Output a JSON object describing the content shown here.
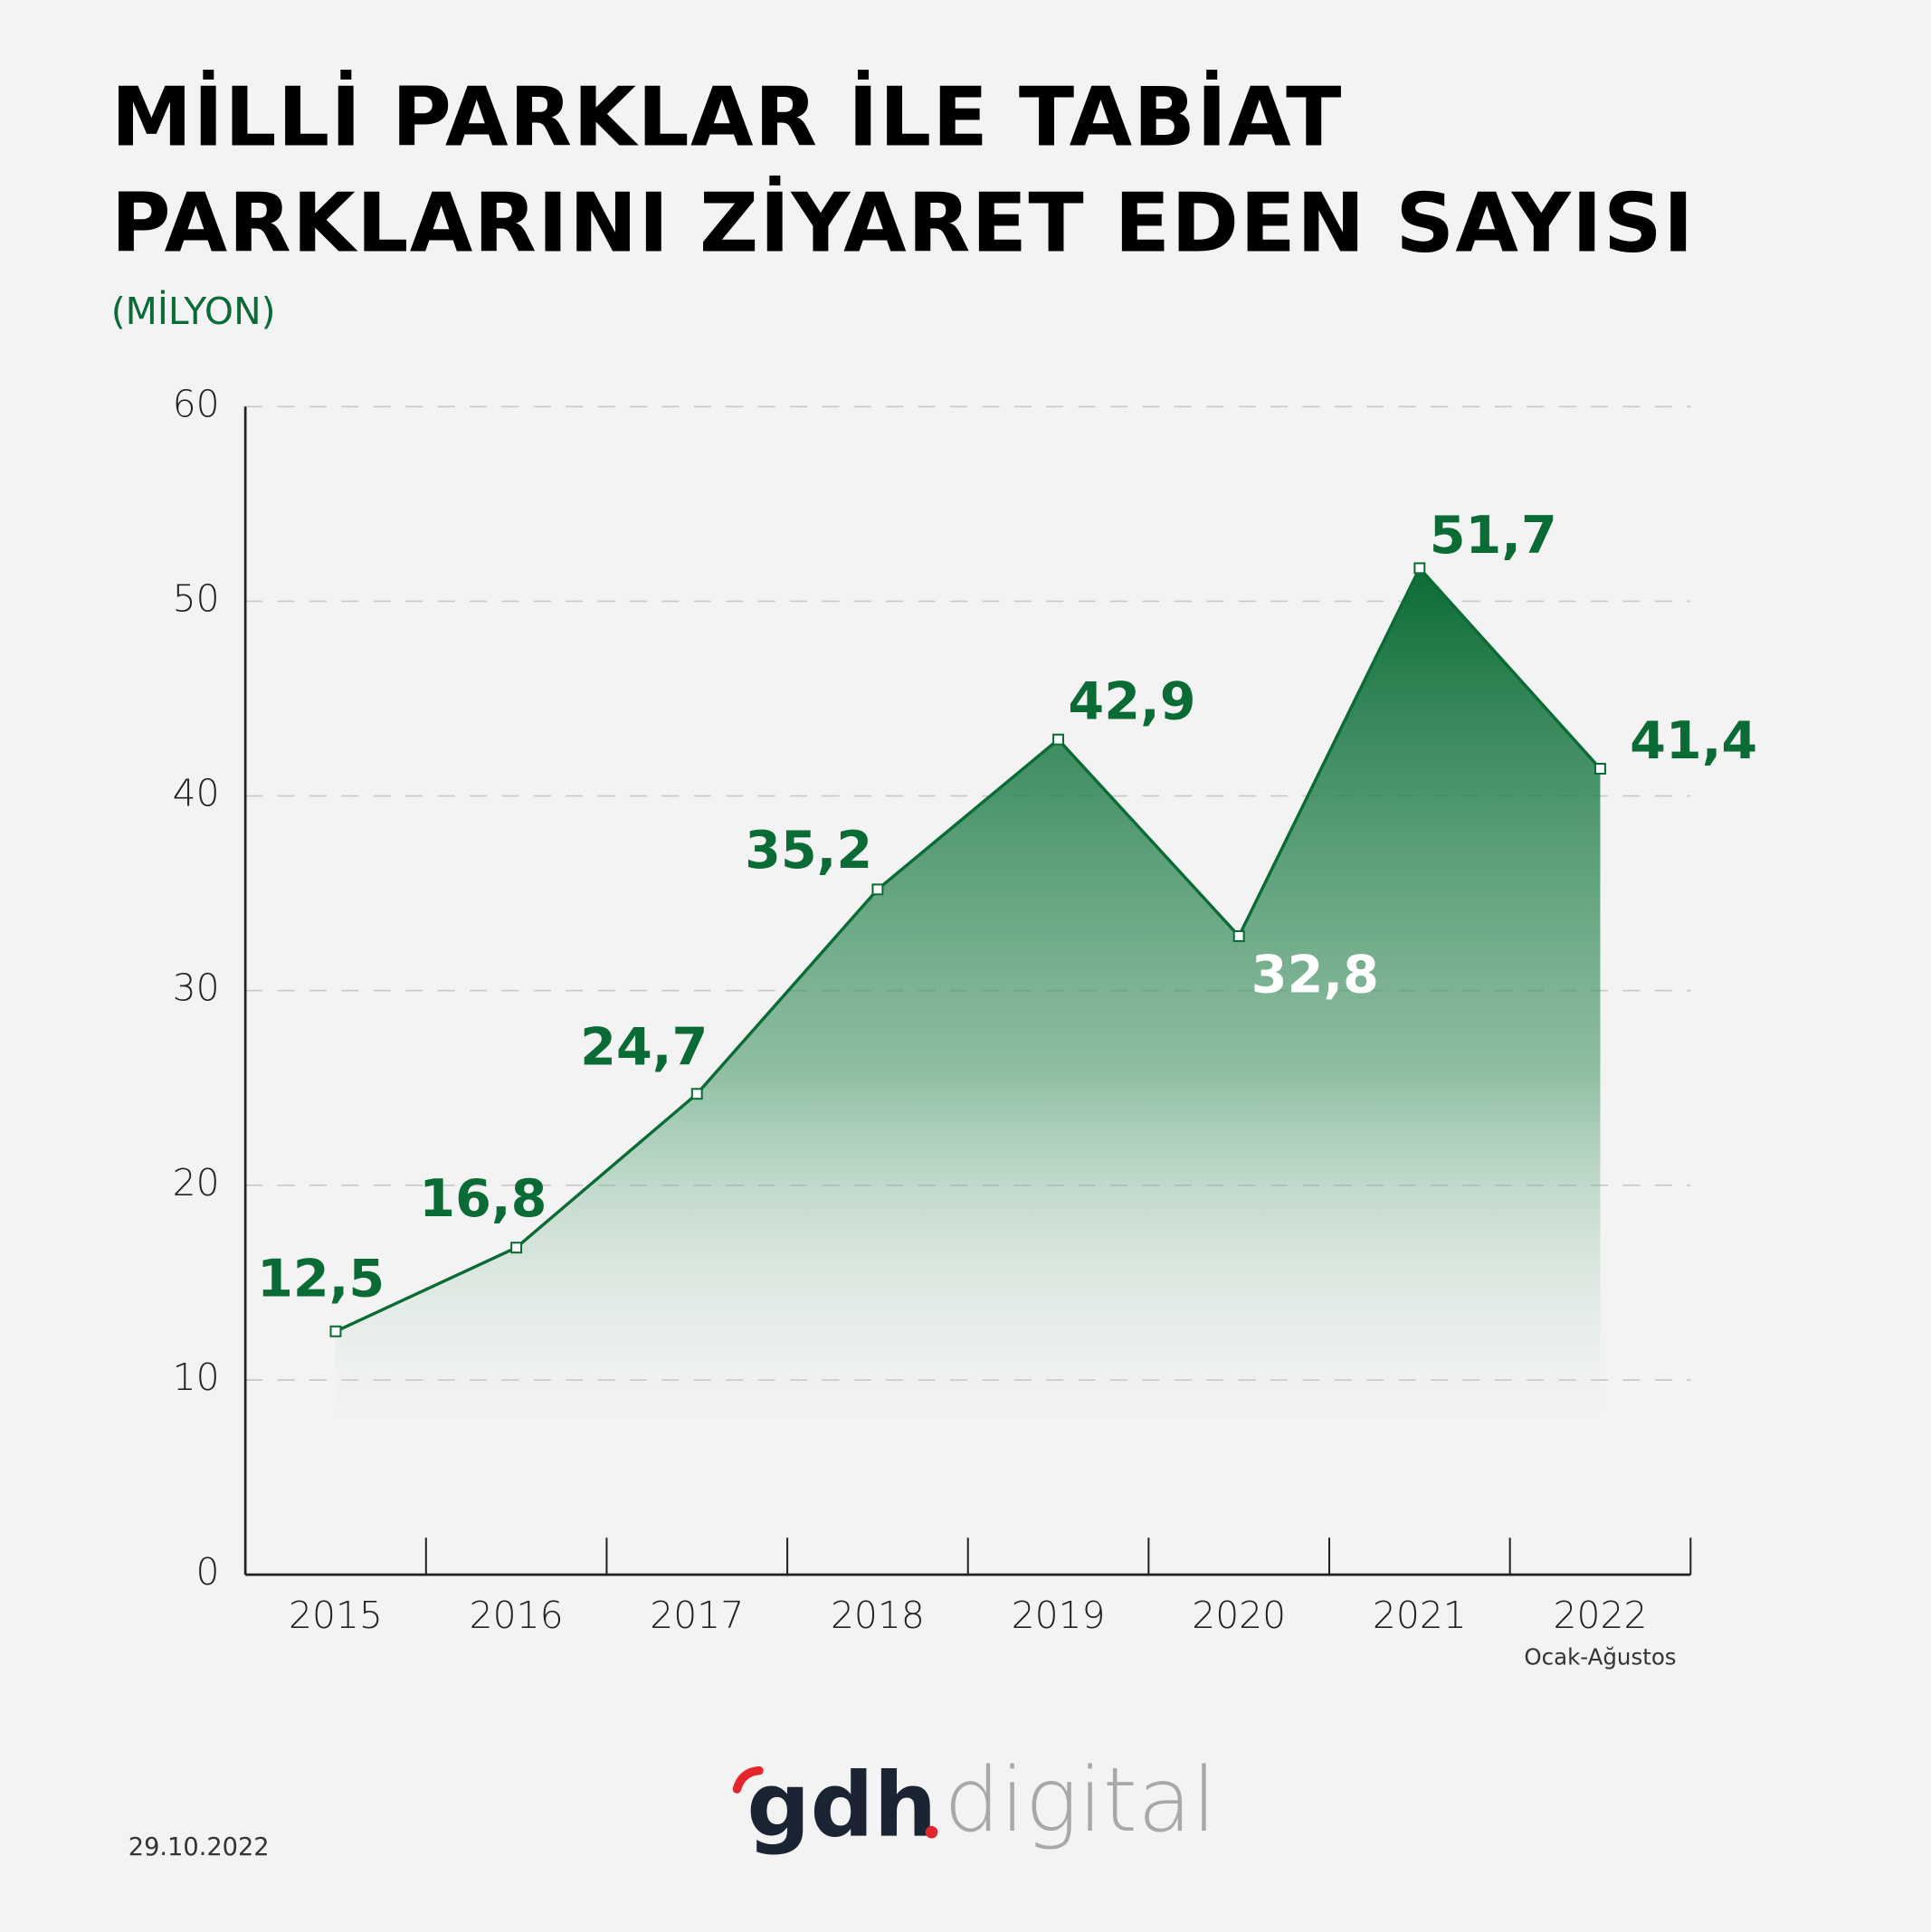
{
  "chart_data": {
    "type": "area",
    "title": [
      "MİLLİ PARKLAR İLE TABİAT",
      "PARKLARINI ZİYARET EDEN SAYISI"
    ],
    "subtitle": "(MİLYON)",
    "categories": [
      "2015",
      "2016",
      "2017",
      "2018",
      "2019",
      "2020",
      "2021",
      "2022"
    ],
    "category_note": "Ocak-Ağustos",
    "values": [
      12.5,
      16.8,
      24.7,
      35.2,
      42.9,
      32.8,
      51.7,
      41.4
    ],
    "value_labels": [
      "12,5",
      "16,8",
      "24,7",
      "35,2",
      "42,9",
      "32,8",
      "51,7",
      "41,4"
    ],
    "value_label_colors": [
      "#0a6b35",
      "#0a6b35",
      "#0a6b35",
      "#0a6b35",
      "#0a6b35",
      "#ffffff",
      "#0a6b35",
      "#0a6b35"
    ],
    "color": "#0a6b35",
    "ylim": [
      0,
      60
    ],
    "yticks": [
      0,
      10,
      20,
      30,
      40,
      50,
      60
    ],
    "grid": true
  },
  "footer": {
    "date": "29.10.2022",
    "logo_main": "gdh",
    "logo_sub": "digital"
  }
}
